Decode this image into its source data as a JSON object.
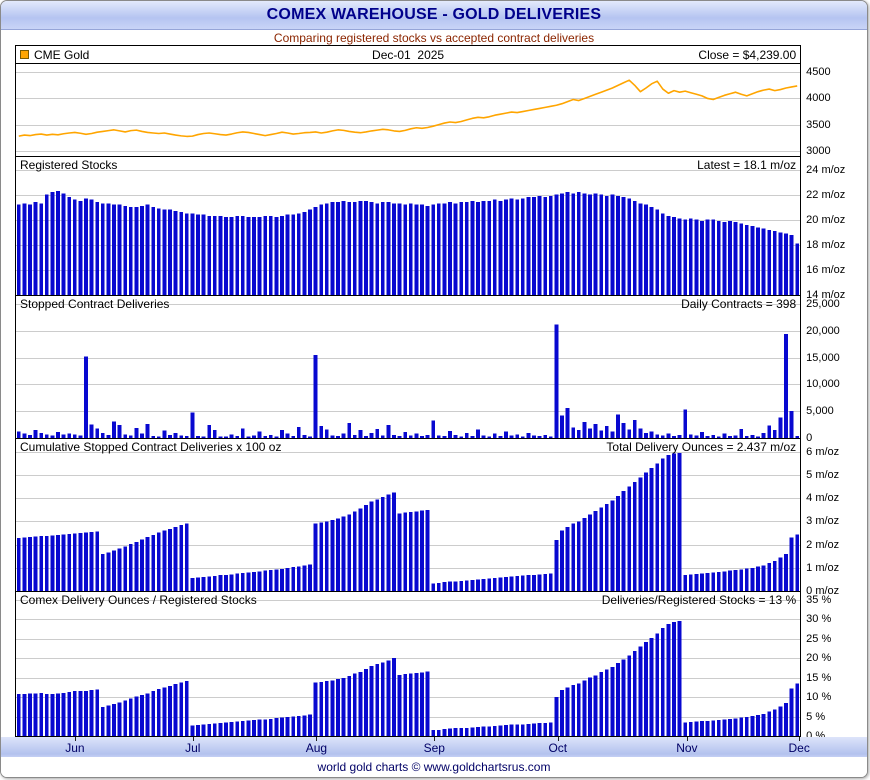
{
  "window": {
    "title": "COMEX WAREHOUSE - GOLD DELIVERIES",
    "subtitle": "Comparing registered stocks vs accepted contract deliveries",
    "footer": "world gold charts © www.goldchartsrus.com"
  },
  "colors": {
    "bar": "#0808d0",
    "price_line": "#ffa500",
    "grid": "#cccccc",
    "panel_border": "#000000",
    "title_text": "#00008b",
    "subtitle_text": "#8b2500",
    "month_text": "#000066",
    "titlebar_top": "#e3eafc",
    "titlebar_bottom": "#b5c4f1"
  },
  "chart_data": {
    "type": "multi-panel-time-series",
    "x_axis": {
      "months": [
        "Jun",
        "Jul",
        "Aug",
        "Sep",
        "Oct",
        "Nov",
        "Dec"
      ],
      "month_start_indices": [
        10,
        31,
        53,
        74,
        96,
        119,
        139
      ],
      "n_points": 140
    },
    "panels": [
      {
        "id": "cme-gold",
        "type": "line",
        "legend": "CME Gold",
        "date_label": "Dec-01  2025",
        "right_label": "Close = $4,239.00",
        "y_ticks": [
          3000,
          3500,
          4000,
          4500
        ],
        "y_tick_labels": [
          "3000",
          "3500",
          "4000",
          "4500"
        ],
        "y_range": [
          2900,
          4640
        ],
        "values": [
          3280,
          3300,
          3290,
          3310,
          3320,
          3300,
          3315,
          3305,
          3325,
          3340,
          3350,
          3335,
          3315,
          3330,
          3355,
          3370,
          3385,
          3400,
          3380,
          3360,
          3385,
          3395,
          3370,
          3350,
          3340,
          3330,
          3340,
          3320,
          3300,
          3285,
          3275,
          3280,
          3310,
          3330,
          3340,
          3325,
          3310,
          3300,
          3320,
          3345,
          3360,
          3350,
          3330,
          3310,
          3290,
          3310,
          3330,
          3355,
          3340,
          3320,
          3330,
          3345,
          3350,
          3360,
          3340,
          3355,
          3380,
          3400,
          3390,
          3370,
          3355,
          3345,
          3360,
          3380,
          3395,
          3410,
          3400,
          3380,
          3370,
          3390,
          3420,
          3440,
          3430,
          3445,
          3470,
          3500,
          3530,
          3550,
          3540,
          3560,
          3590,
          3620,
          3640,
          3630,
          3650,
          3680,
          3700,
          3720,
          3740,
          3730,
          3750,
          3770,
          3790,
          3810,
          3830,
          3850,
          3870,
          3900,
          3940,
          3980,
          3960,
          4000,
          4040,
          4080,
          4120,
          4160,
          4200,
          4250,
          4300,
          4350,
          4250,
          4130,
          4200,
          4280,
          4330,
          4180,
          4100,
          4150,
          4120,
          4140,
          4110,
          4080,
          4050,
          4000,
          3980,
          4020,
          4060,
          4090,
          4120,
          4080,
          4050,
          4090,
          4130,
          4160,
          4180,
          4150,
          4170,
          4200,
          4220,
          4239
        ]
      },
      {
        "id": "registered-stocks",
        "type": "bar",
        "title": "Registered Stocks",
        "right_label": "Latest = 18.1 m/oz",
        "y_ticks": [
          14,
          16,
          18,
          20,
          22,
          24
        ],
        "y_tick_labels": [
          "14 m/oz",
          "16 m/oz",
          "18 m/oz",
          "20 m/oz",
          "22 m/oz",
          "24 m/oz"
        ],
        "y_range": [
          14,
          25
        ],
        "values": [
          21.2,
          21.3,
          21.2,
          21.4,
          21.3,
          22.0,
          22.2,
          22.3,
          22.1,
          21.8,
          21.6,
          21.5,
          21.7,
          21.6,
          21.4,
          21.3,
          21.3,
          21.2,
          21.2,
          21.1,
          21.0,
          21.0,
          21.1,
          21.2,
          21.0,
          20.9,
          20.8,
          20.8,
          20.7,
          20.6,
          20.5,
          20.5,
          20.4,
          20.4,
          20.3,
          20.3,
          20.3,
          20.2,
          20.2,
          20.3,
          20.3,
          20.2,
          20.2,
          20.2,
          20.3,
          20.3,
          20.2,
          20.3,
          20.4,
          20.4,
          20.5,
          20.6,
          20.8,
          21.0,
          21.2,
          21.3,
          21.4,
          21.4,
          21.5,
          21.4,
          21.4,
          21.5,
          21.5,
          21.4,
          21.3,
          21.4,
          21.4,
          21.3,
          21.3,
          21.2,
          21.3,
          21.2,
          21.2,
          21.1,
          21.2,
          21.3,
          21.3,
          21.4,
          21.3,
          21.4,
          21.4,
          21.5,
          21.4,
          21.5,
          21.5,
          21.6,
          21.5,
          21.6,
          21.7,
          21.6,
          21.7,
          21.8,
          21.8,
          21.9,
          21.8,
          21.9,
          22.0,
          22.1,
          22.2,
          22.1,
          22.2,
          22.1,
          22.0,
          22.1,
          22.0,
          21.9,
          22.0,
          21.9,
          21.8,
          21.7,
          21.5,
          21.3,
          21.2,
          21.0,
          20.8,
          20.5,
          20.3,
          20.2,
          20.1,
          20.0,
          20.1,
          20.0,
          19.9,
          20.0,
          20.0,
          19.9,
          19.8,
          19.9,
          19.8,
          19.7,
          19.6,
          19.5,
          19.4,
          19.3,
          19.2,
          19.1,
          19.0,
          18.9,
          18.8,
          18.1
        ]
      },
      {
        "id": "stopped-deliveries",
        "type": "bar",
        "title": "Stopped Contract Deliveries",
        "right_label": "Daily Contracts = 398",
        "y_ticks": [
          0,
          5000,
          10000,
          15000,
          20000,
          25000
        ],
        "y_tick_labels": [
          "0",
          "5,000",
          "10,000",
          "15,000",
          "20,000",
          "25,000"
        ],
        "y_range": [
          0,
          26500
        ],
        "values": [
          1200,
          800,
          600,
          1500,
          900,
          700,
          500,
          1100,
          650,
          800,
          700,
          500,
          15200,
          2500,
          1800,
          900,
          600,
          3100,
          2400,
          700,
          500,
          1900,
          800,
          2600,
          400,
          300,
          1400,
          600,
          900,
          500,
          400,
          4800,
          400,
          300,
          2400,
          1500,
          300,
          250,
          700,
          400,
          1800,
          300,
          500,
          1200,
          400,
          600,
          300,
          1500,
          800,
          400,
          2100,
          600,
          300,
          15500,
          2200,
          1600,
          500,
          400,
          800,
          2800,
          600,
          1500,
          400,
          900,
          1700,
          500,
          2400,
          600,
          400,
          1100,
          500,
          800,
          400,
          600,
          3300,
          500,
          400,
          1300,
          600,
          300,
          900,
          400,
          1600,
          500,
          300,
          800,
          400,
          1200,
          500,
          700,
          300,
          900,
          500,
          400,
          600,
          300,
          21200,
          4200,
          5600,
          2000,
          1500,
          3000,
          1800,
          2600,
          1400,
          2200,
          1200,
          4400,
          2800,
          1600,
          3400,
          1800,
          900,
          1200,
          700,
          500,
          800,
          400,
          600,
          5300,
          700,
          500,
          1100,
          400,
          600,
          300,
          800,
          400,
          500,
          1700,
          400,
          600,
          300,
          900,
          2300,
          1500,
          3800,
          19400,
          5000,
          398
        ]
      },
      {
        "id": "cumulative-deliveries",
        "type": "bar",
        "title": "Cumulative Stopped Contract Deliveries x 100 oz",
        "right_label": "Total Delivery Ounces = 2.437 m/oz",
        "y_ticks": [
          0,
          1,
          2,
          3,
          4,
          5,
          6
        ],
        "y_tick_labels": [
          "0 m/oz",
          "1 m/oz",
          "2 m/oz",
          "3 m/oz",
          "4 m/oz",
          "5 m/oz",
          "6 m/oz"
        ],
        "y_range": [
          0,
          6.55
        ],
        "values": [
          2.28,
          2.3,
          2.32,
          2.34,
          2.36,
          2.38,
          2.4,
          2.42,
          2.44,
          2.46,
          2.48,
          2.5,
          2.52,
          2.54,
          2.56,
          1.6,
          1.66,
          1.74,
          1.83,
          1.92,
          2.02,
          2.12,
          2.22,
          2.32,
          2.42,
          2.52,
          2.6,
          2.68,
          2.76,
          2.84,
          2.9,
          0.55,
          0.58,
          0.6,
          0.63,
          0.65,
          0.68,
          0.7,
          0.72,
          0.75,
          0.78,
          0.8,
          0.82,
          0.85,
          0.88,
          0.9,
          0.93,
          0.95,
          1.0,
          1.03,
          1.06,
          1.1,
          1.15,
          2.9,
          2.95,
          3.0,
          3.05,
          3.12,
          3.2,
          3.3,
          3.42,
          3.55,
          3.7,
          3.85,
          3.95,
          4.05,
          4.15,
          4.25,
          3.35,
          3.38,
          3.4,
          3.43,
          3.46,
          3.5,
          0.33,
          0.35,
          0.38,
          0.4,
          0.42,
          0.44,
          0.46,
          0.48,
          0.5,
          0.52,
          0.54,
          0.56,
          0.58,
          0.6,
          0.62,
          0.64,
          0.66,
          0.68,
          0.7,
          0.72,
          0.74,
          0.76,
          2.2,
          2.6,
          2.75,
          2.9,
          3.0,
          3.15,
          3.3,
          3.45,
          3.6,
          3.75,
          3.9,
          4.1,
          4.3,
          4.5,
          4.7,
          4.9,
          5.1,
          5.3,
          5.5,
          5.7,
          5.85,
          5.92,
          5.95,
          0.7,
          0.72,
          0.74,
          0.76,
          0.78,
          0.8,
          0.82,
          0.85,
          0.88,
          0.9,
          0.93,
          0.96,
          1.0,
          1.05,
          1.1,
          1.2,
          1.3,
          1.45,
          1.6,
          2.3,
          2.437
        ]
      },
      {
        "id": "delivery-ratio",
        "type": "bar",
        "title": "Comex Delivery Ounces / Registered Stocks",
        "right_label": "Deliveries/Registered Stocks = 13 %",
        "y_ticks": [
          0,
          5,
          10,
          15,
          20,
          25,
          30,
          35
        ],
        "y_tick_labels": [
          "0 %",
          "5 %",
          "10 %",
          "15 %",
          "20 %",
          "25 %",
          "30 %",
          "35 %"
        ],
        "y_range": [
          0,
          37
        ],
        "values": [
          10.8,
          10.8,
          10.9,
          10.9,
          11.1,
          10.8,
          10.8,
          10.9,
          11.0,
          11.3,
          11.5,
          11.6,
          11.6,
          11.8,
          12.0,
          7.5,
          7.8,
          8.2,
          8.6,
          9.1,
          9.6,
          10.1,
          10.5,
          10.9,
          11.5,
          12.1,
          12.5,
          12.9,
          13.3,
          13.8,
          14.1,
          2.7,
          2.8,
          2.9,
          3.1,
          3.2,
          3.3,
          3.5,
          3.6,
          3.7,
          3.8,
          4.0,
          4.1,
          4.2,
          4.3,
          4.4,
          4.6,
          4.7,
          4.9,
          5.0,
          5.2,
          5.3,
          5.5,
          13.8,
          13.9,
          14.1,
          14.3,
          14.6,
          14.9,
          15.4,
          16.0,
          16.5,
          17.2,
          18.0,
          18.5,
          18.9,
          19.4,
          20.0,
          15.7,
          15.9,
          16.0,
          16.2,
          16.3,
          16.6,
          1.6,
          1.6,
          1.8,
          1.9,
          2.0,
          2.1,
          2.1,
          2.2,
          2.3,
          2.4,
          2.5,
          2.6,
          2.7,
          2.8,
          2.9,
          3.0,
          3.0,
          3.1,
          3.2,
          3.3,
          3.4,
          3.5,
          10.0,
          11.8,
          12.4,
          13.1,
          13.5,
          14.3,
          15.0,
          15.6,
          16.4,
          17.1,
          17.7,
          18.7,
          19.7,
          20.7,
          21.9,
          23.0,
          24.1,
          25.2,
          26.4,
          27.8,
          28.8,
          29.3,
          29.6,
          3.5,
          3.6,
          3.7,
          3.8,
          3.9,
          4.0,
          4.1,
          4.3,
          4.4,
          4.5,
          4.7,
          4.9,
          5.1,
          5.4,
          5.7,
          6.3,
          6.8,
          7.6,
          8.5,
          12.2,
          13.5
        ]
      }
    ]
  }
}
